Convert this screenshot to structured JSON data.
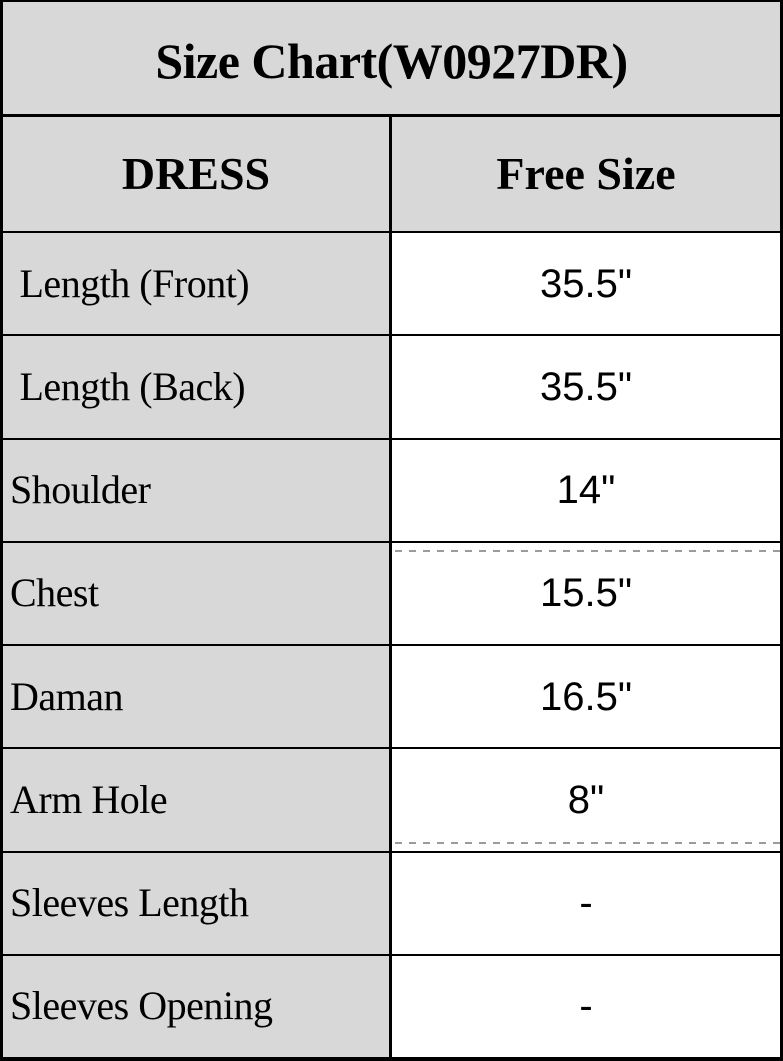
{
  "chart_data": {
    "type": "table",
    "title": "Size Chart(W0927DR)",
    "columns": [
      "DRESS",
      "Free Size"
    ],
    "rows": [
      {
        "label": " Length (Front)",
        "value": "35.5\""
      },
      {
        "label": " Length (Back)",
        "value": "35.5\""
      },
      {
        "label": "Shoulder",
        "value": "14\""
      },
      {
        "label": "Chest",
        "value": "15.5\""
      },
      {
        "label": "Daman",
        "value": "16.5\""
      },
      {
        "label": "Arm Hole",
        "value": "8\""
      },
      {
        "label": "Sleeves Length",
        "value": "-"
      },
      {
        "label": "Sleeves Opening",
        "value": "-"
      }
    ],
    "layout": {
      "legend": "none",
      "grid": "solid black cell borders",
      "label_column_fill": "#d8d8d8",
      "value_column_fill": "#ffffff",
      "header_fill": "#d8d8d8",
      "border_color": "#000000",
      "text_color": "#000000"
    }
  }
}
